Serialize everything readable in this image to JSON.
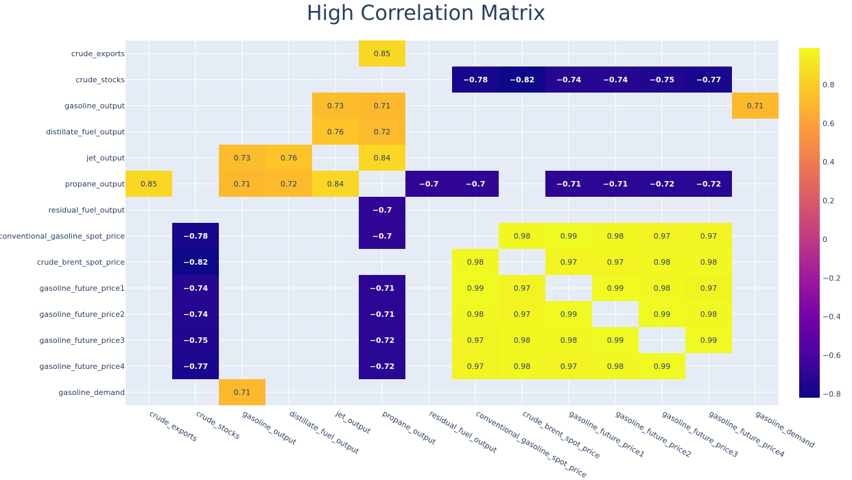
{
  "chart_data": {
    "type": "heatmap",
    "title": "High Correlation Matrix",
    "x_categories": [
      "crude_exports",
      "crude_stocks",
      "gasoline_output",
      "distillate_fuel_output",
      "jet_output",
      "propane_output",
      "residual_fuel_output",
      "conventional_gasoline_spot_price",
      "crude_brent_spot_price",
      "gasoline_future_price1",
      "gasoline_future_price2",
      "gasoline_future_price3",
      "gasoline_future_price4",
      "gasoline_demand"
    ],
    "y_categories": [
      "crude_exports",
      "crude_stocks",
      "gasoline_output",
      "distillate_fuel_output",
      "jet_output",
      "propane_output",
      "residual_fuel_output",
      "conventional_gasoline_spot_price",
      "crude_brent_spot_price",
      "gasoline_future_price1",
      "gasoline_future_price2",
      "gasoline_future_price3",
      "gasoline_future_price4",
      "gasoline_demand"
    ],
    "z": [
      [
        null,
        null,
        null,
        null,
        null,
        0.85,
        null,
        null,
        null,
        null,
        null,
        null,
        null,
        null
      ],
      [
        null,
        null,
        null,
        null,
        null,
        null,
        null,
        -0.78,
        -0.82,
        -0.74,
        -0.74,
        -0.75,
        -0.77,
        null
      ],
      [
        null,
        null,
        null,
        null,
        0.73,
        0.71,
        null,
        null,
        null,
        null,
        null,
        null,
        null,
        0.71
      ],
      [
        null,
        null,
        null,
        null,
        0.76,
        0.72,
        null,
        null,
        null,
        null,
        null,
        null,
        null,
        null
      ],
      [
        null,
        null,
        0.73,
        0.76,
        null,
        0.84,
        null,
        null,
        null,
        null,
        null,
        null,
        null,
        null
      ],
      [
        0.85,
        null,
        0.71,
        0.72,
        0.84,
        null,
        -0.7,
        -0.7,
        null,
        -0.71,
        -0.71,
        -0.72,
        -0.72,
        null
      ],
      [
        null,
        null,
        null,
        null,
        null,
        -0.7,
        null,
        null,
        null,
        null,
        null,
        null,
        null,
        null
      ],
      [
        null,
        -0.78,
        null,
        null,
        null,
        -0.7,
        null,
        null,
        0.98,
        0.99,
        0.98,
        0.97,
        0.97,
        null
      ],
      [
        null,
        -0.82,
        null,
        null,
        null,
        null,
        null,
        0.98,
        null,
        0.97,
        0.97,
        0.98,
        0.98,
        null
      ],
      [
        null,
        -0.74,
        null,
        null,
        null,
        -0.71,
        null,
        0.99,
        0.97,
        null,
        0.99,
        0.98,
        0.97,
        null
      ],
      [
        null,
        -0.74,
        null,
        null,
        null,
        -0.71,
        null,
        0.98,
        0.97,
        0.99,
        null,
        0.99,
        0.98,
        null
      ],
      [
        null,
        -0.75,
        null,
        null,
        null,
        -0.72,
        null,
        0.97,
        0.98,
        0.98,
        0.99,
        null,
        0.99,
        null
      ],
      [
        null,
        -0.77,
        null,
        null,
        null,
        -0.72,
        null,
        0.97,
        0.98,
        0.97,
        0.98,
        0.99,
        null,
        null
      ],
      [
        null,
        null,
        0.71,
        null,
        null,
        null,
        null,
        null,
        null,
        null,
        null,
        null,
        null,
        null
      ]
    ],
    "colorscale": "Plasma",
    "zmin": -0.82,
    "zmax": 0.99,
    "colorbar_ticks": [
      0.8,
      0.6,
      0.4,
      0.2,
      0,
      -0.2,
      -0.4,
      -0.6,
      -0.8
    ],
    "colorbar_tick_labels": [
      "0.8",
      "0.6",
      "0.4",
      "0.2",
      "0",
      "−0.2",
      "−0.4",
      "−0.6",
      "−0.8"
    ],
    "grid": true,
    "colors": {
      "plot_bg": "#e5ecf6",
      "grid": "#ffffff",
      "text": "#2a3f5f"
    }
  }
}
